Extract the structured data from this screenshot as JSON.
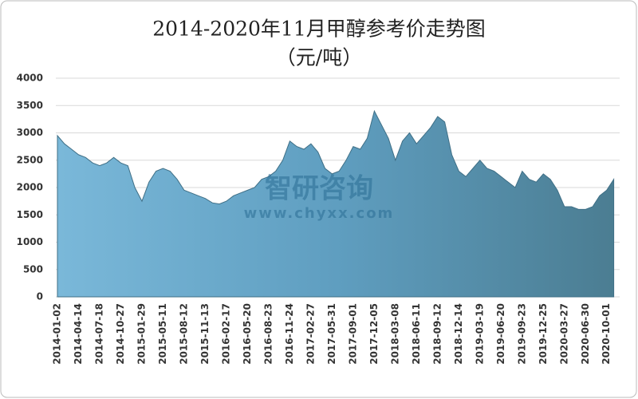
{
  "chart_data": {
    "type": "area",
    "title": "2014-2020年11月甲醇参考价走势图",
    "subtitle": "（元/吨）",
    "watermark": [
      "智研咨询",
      "www.chyxx.com"
    ],
    "color": "#5f9ec0",
    "grid": true,
    "ylim": [
      0,
      4000
    ],
    "yticks": [
      0,
      500,
      1000,
      1500,
      2000,
      2500,
      3000,
      3500,
      4000
    ],
    "categories": [
      "2014-01-02",
      null,
      null,
      "2014-04-14",
      null,
      null,
      "2014-07-18",
      null,
      null,
      "2014-10-27",
      null,
      null,
      "2015-01-29",
      null,
      null,
      "2015-05-11",
      null,
      null,
      "2015-08-12",
      null,
      null,
      "2015-11-13",
      null,
      null,
      "2016-02-17",
      null,
      null,
      "2016-05-20",
      null,
      null,
      "2016-08-23",
      null,
      null,
      "2016-11-24",
      null,
      null,
      "2017-02-27",
      null,
      null,
      "2017-05-31",
      null,
      null,
      "2017-09-01",
      null,
      null,
      "2017-12-05",
      null,
      null,
      "2018-03-08",
      null,
      null,
      "2018-06-11",
      null,
      null,
      "2018-09-12",
      null,
      null,
      "2018-12-14",
      null,
      null,
      "2019-03-19",
      null,
      null,
      "2019-06-20",
      null,
      null,
      "2019-09-23",
      null,
      null,
      "2019-12-25",
      null,
      null,
      "2020-03-27",
      null,
      null,
      "2020-06-30",
      null,
      null,
      "2020-10-01",
      null
    ],
    "values": [
      2950,
      2800,
      2700,
      2600,
      2550,
      2450,
      2400,
      2450,
      2550,
      2450,
      2400,
      2000,
      1750,
      2100,
      2300,
      2350,
      2300,
      2150,
      1950,
      1900,
      1850,
      1800,
      1720,
      1700,
      1750,
      1850,
      1900,
      1950,
      2000,
      2150,
      2200,
      2300,
      2500,
      2850,
      2750,
      2700,
      2800,
      2650,
      2350,
      2250,
      2300,
      2500,
      2750,
      2700,
      2900,
      3400,
      3150,
      2900,
      2500,
      2850,
      3000,
      2800,
      2950,
      3100,
      3300,
      3200,
      2600,
      2300,
      2200,
      2350,
      2500,
      2350,
      2300,
      2200,
      2100,
      2000,
      2300,
      2150,
      2100,
      2250,
      2150,
      1950,
      1650,
      1650,
      1600,
      1600,
      1650,
      1850,
      1950,
      2150
    ]
  }
}
